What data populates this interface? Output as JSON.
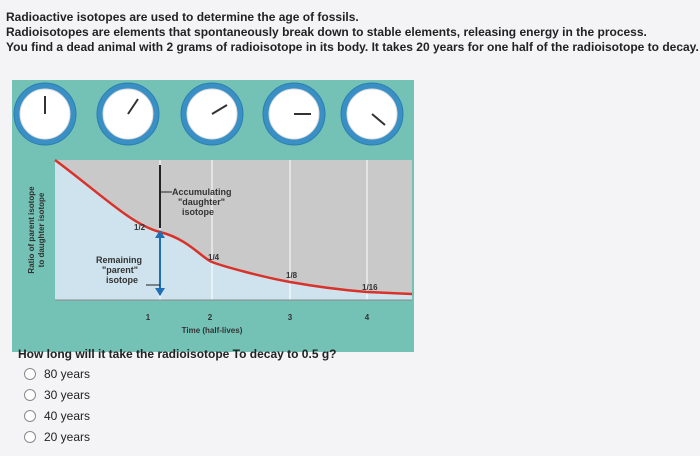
{
  "intro": [
    "Radioactive isotopes are used to determine the age of fossils.",
    "Radioisotopes are elements that spontaneously break down to stable elements, releasing energy in the process.",
    "You find a dead animal with 2 grams of radioisotope in its body. It takes 20 years for one half of the radioisotope to decay."
  ],
  "figure": {
    "y_label": [
      "Ratio of parent isotope",
      "to daughter isotope"
    ],
    "x_label": "Time (half-lives)",
    "x_ticks": [
      "1",
      "2",
      "3",
      "4"
    ],
    "fractions": [
      "1/2",
      "1/4",
      "1/8",
      "1/16"
    ],
    "daughter_label": [
      "Accumulating",
      "\"daughter\"",
      "isotope"
    ],
    "parent_label": [
      "Remaining",
      "\"parent\"",
      "isotope"
    ]
  },
  "question": "How long will it take the radioisotope To decay to 0.5 g?",
  "options": [
    "80 years",
    "30 years",
    "40 years",
    "20 years"
  ]
}
